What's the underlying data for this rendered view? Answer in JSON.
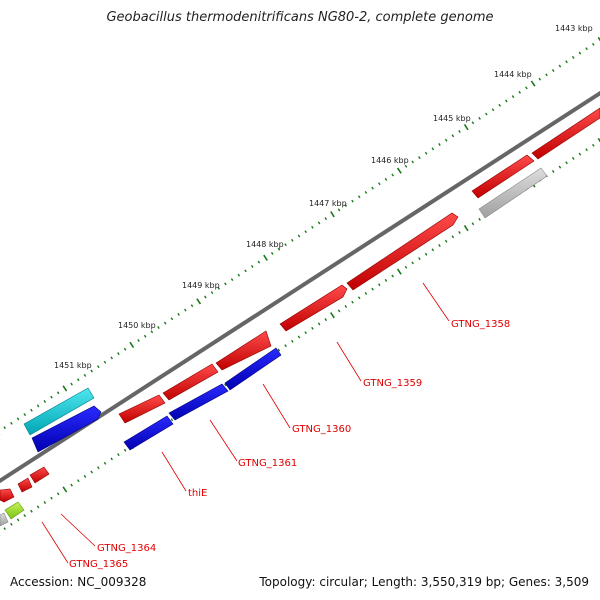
{
  "title": "Geobacillus thermodenitrificans NG80-2, complete genome",
  "footer": {
    "accession": "Accession: NC_009328",
    "summary": "Topology: circular; Length: 3,550,319 bp; Genes: 3,509"
  },
  "ticks": [
    {
      "label": "1443 kbp"
    },
    {
      "label": "1444 kbp"
    },
    {
      "label": "1445 kbp"
    },
    {
      "label": "1446 kbp"
    },
    {
      "label": "1447 kbp"
    },
    {
      "label": "1448 kbp"
    },
    {
      "label": "1449 kbp"
    },
    {
      "label": "1450 kbp"
    },
    {
      "label": "1451 kbp"
    }
  ],
  "gene_labels": [
    {
      "name": "GTNG_1358"
    },
    {
      "name": "GTNG_1359"
    },
    {
      "name": "GTNG_1360"
    },
    {
      "name": "GTNG_1361"
    },
    {
      "name": "thiE"
    },
    {
      "name": "GTNG_1364"
    },
    {
      "name": "GTNG_1365"
    }
  ],
  "colors": {
    "forward_cds": "#e00000",
    "reverse_cds": "#0000cc",
    "rna": "#00b8c8",
    "other": "#bbbbbb",
    "misc": "#99dd22",
    "backbone": "#666666",
    "tick": "#1a7a1a"
  }
}
